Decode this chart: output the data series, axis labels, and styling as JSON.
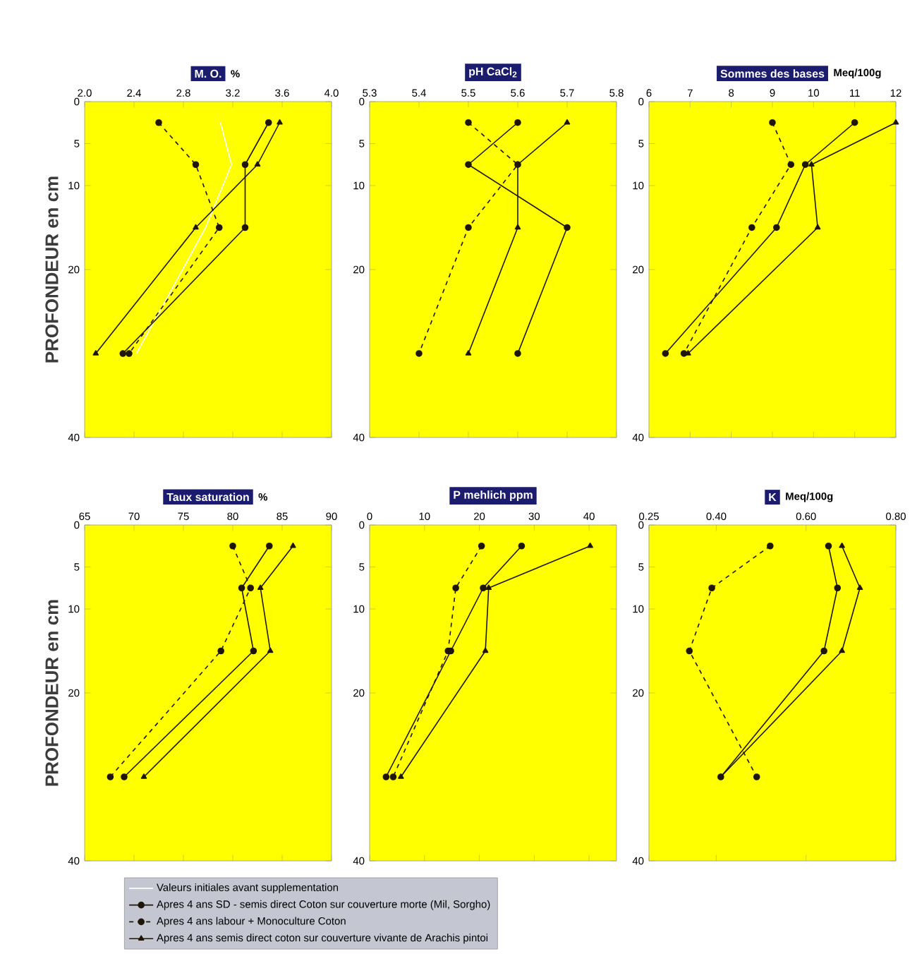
{
  "chart_data": [
    {
      "type": "line",
      "title": "M. O.",
      "xlabel": "%",
      "ylabel": "PROFONDEUR en cm",
      "legend": "bottom",
      "xlim": [
        2.0,
        4.0
      ],
      "xticks": [
        {
          "value": 2.0,
          "label": "2.0"
        },
        2.4,
        2.8,
        3.2,
        3.6,
        {
          "value": 4.0,
          "label": "4.0"
        }
      ],
      "ylim": [
        40,
        0
      ],
      "yticks": [
        0,
        5,
        10,
        20,
        40
      ],
      "series": [
        {
          "name": "Valeurs initiales avant supplementation",
          "color": "#ffffff",
          "marker": "none",
          "line_style": "solid",
          "x": [
            3.1,
            3.19,
            2.98,
            2.42
          ],
          "values": [
            2.5,
            7.5,
            15,
            30
          ]
        },
        {
          "name": "Apres 4 ans SD - semis direct Coton sur couverture morte (Mil, Sorgho)",
          "color": "#1e1608",
          "marker": "circle",
          "line_style": "solid",
          "x": [
            3.49,
            3.3,
            3.3,
            2.31
          ],
          "values": [
            2.5,
            7.5,
            15,
            30
          ]
        },
        {
          "name": "Apres 4 ans labour + Monoculture Coton",
          "color": "#1e1608",
          "marker": "circle",
          "line_style": "dashed",
          "x": [
            2.6,
            2.9,
            3.09,
            2.36
          ],
          "values": [
            2.5,
            7.5,
            15,
            30
          ]
        },
        {
          "name": "Apres 4 ans semis direct coton sur couverture vivante de Arachis pintoi",
          "color": "#1e1608",
          "marker": "triangle",
          "line_style": "solid",
          "x": [
            3.58,
            3.4,
            2.9,
            2.09
          ],
          "values": [
            2.5,
            7.5,
            15,
            30
          ]
        }
      ]
    },
    {
      "type": "line",
      "title": "pH CaCl$_{2}$",
      "xlim": [
        5.3,
        5.8
      ],
      "xticks": [
        5.3,
        5.4,
        5.5,
        5.6,
        5.7,
        5.8
      ],
      "ylim": [
        40,
        0
      ],
      "yticks": [
        0,
        5,
        10,
        20,
        40
      ],
      "series": [
        {
          "color": "#1e1608",
          "marker": "circle",
          "line_style": "solid",
          "x": [
            5.6,
            5.5,
            5.7,
            5.6
          ],
          "values": [
            2.5,
            7.5,
            15,
            30
          ]
        },
        {
          "color": "#1e1608",
          "marker": "circle",
          "line_style": "dashed",
          "x": [
            5.5,
            5.6,
            5.5,
            5.4
          ],
          "values": [
            2.5,
            7.5,
            15,
            30
          ]
        },
        {
          "color": "#1e1608",
          "marker": "triangle",
          "line_style": "solid",
          "x": [
            5.7,
            5.6,
            5.6,
            5.5
          ],
          "values": [
            2.5,
            7.5,
            15,
            30
          ]
        }
      ]
    },
    {
      "type": "line",
      "title": "Sommes des bases",
      "xlabel": "Meq/100g",
      "xlim": [
        6,
        12
      ],
      "xticks": [
        6,
        7,
        8,
        9,
        10,
        11,
        12
      ],
      "ylim": [
        40,
        0
      ],
      "yticks": [
        0,
        5,
        10,
        20,
        40
      ],
      "series": [
        {
          "color": "#1e1608",
          "marker": "circle",
          "line_style": "solid",
          "x": [
            11.0,
            9.8,
            9.1,
            6.4
          ],
          "values": [
            2.5,
            7.5,
            15,
            30
          ]
        },
        {
          "color": "#1e1608",
          "marker": "circle",
          "line_style": "dashed",
          "x": [
            9.0,
            9.45,
            8.5,
            6.85
          ],
          "values": [
            2.5,
            7.5,
            15,
            30
          ]
        },
        {
          "color": "#1e1608",
          "marker": "triangle",
          "line_style": "solid",
          "x": [
            12.0,
            9.95,
            10.1,
            6.95
          ],
          "values": [
            2.5,
            7.5,
            15,
            30
          ]
        }
      ]
    },
    {
      "type": "line",
      "title": "Taux saturation",
      "xlabel": "%",
      "ylabel": "PROFONDEUR en cm",
      "xlim": [
        65,
        90
      ],
      "xticks": [
        65,
        70,
        75,
        80,
        85,
        90
      ],
      "ylim": [
        40,
        0
      ],
      "yticks": [
        0,
        5,
        10,
        20,
        40
      ],
      "series": [
        {
          "color": "#1e1608",
          "marker": "circle",
          "line_style": "solid",
          "x": [
            83.7,
            80.9,
            82.1,
            69.0
          ],
          "values": [
            2.5,
            7.5,
            15,
            30
          ]
        },
        {
          "color": "#1e1608",
          "marker": "circle",
          "line_style": "dashed",
          "x": [
            80.0,
            81.8,
            78.8,
            67.6
          ],
          "values": [
            2.5,
            7.5,
            15,
            30
          ]
        },
        {
          "color": "#1e1608",
          "marker": "triangle",
          "line_style": "solid",
          "x": [
            86.1,
            82.8,
            83.8,
            71.0
          ],
          "values": [
            2.5,
            7.5,
            15,
            30
          ]
        }
      ]
    },
    {
      "type": "line",
      "title": "P mehlich ppm",
      "xlim": [
        0,
        45
      ],
      "xticks": [
        0,
        10,
        20,
        30,
        40
      ],
      "ylim": [
        40,
        0
      ],
      "yticks": [
        0,
        5,
        10,
        20,
        40
      ],
      "series": [
        {
          "color": "#1e1608",
          "marker": "circle",
          "line_style": "solid",
          "x": [
            27.7,
            20.7,
            14.8,
            3.0
          ],
          "values": [
            2.5,
            7.5,
            15,
            30
          ]
        },
        {
          "color": "#1e1608",
          "marker": "circle",
          "line_style": "dashed",
          "x": [
            20.4,
            15.7,
            14.3,
            4.3
          ],
          "values": [
            2.5,
            7.5,
            15,
            30
          ]
        },
        {
          "color": "#1e1608",
          "marker": "triangle",
          "line_style": "solid",
          "x": [
            40.2,
            21.7,
            21.1,
            5.7
          ],
          "values": [
            2.5,
            7.5,
            15,
            30
          ]
        }
      ]
    },
    {
      "type": "line",
      "title": "K",
      "xlabel": "Meq/100g",
      "xlim": [
        0.25,
        0.8
      ],
      "xticks": [
        0.25,
        {
          "value": 0.4,
          "label": "0.40"
        },
        {
          "value": 0.6,
          "label": "0.60"
        },
        {
          "value": 0.8,
          "label": "0.80"
        }
      ],
      "ylim": [
        40,
        0
      ],
      "yticks": [
        0,
        5,
        10,
        20,
        40
      ],
      "series": [
        {
          "color": "#1e1608",
          "marker": "circle",
          "line_style": "solid",
          "x": [
            0.65,
            0.67,
            0.64,
            0.41
          ],
          "values": [
            2.5,
            7.5,
            15,
            30
          ]
        },
        {
          "color": "#1e1608",
          "marker": "circle",
          "line_style": "dashed",
          "x": [
            0.52,
            0.39,
            0.34,
            0.49
          ],
          "values": [
            2.5,
            7.5,
            15,
            30
          ]
        },
        {
          "color": "#1e1608",
          "marker": "triangle",
          "line_style": "solid",
          "x": [
            0.68,
            0.72,
            0.68,
            0.41
          ],
          "values": [
            2.5,
            7.5,
            15,
            30
          ]
        }
      ]
    }
  ]
}
